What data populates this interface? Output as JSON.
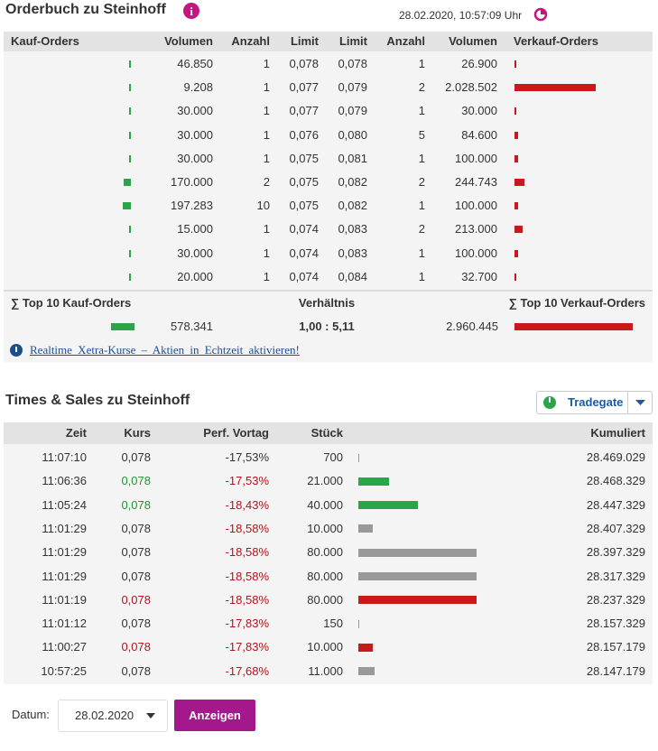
{
  "orderbook": {
    "title": "Orderbuch zu Steinhoff",
    "timestamp": "28.02.2020, 10:57:09 Uhr",
    "headers": [
      "Kauf-Orders",
      "Volumen",
      "Anzahl",
      "Limit",
      "Limit",
      "Anzahl",
      "Volumen",
      "Verkauf-Orders"
    ],
    "buy_color": "#2ca44a",
    "sell_color": "#c8191f",
    "rows": [
      [
        "46.850",
        "1",
        "0,078",
        "0,078",
        "1",
        "26.900"
      ],
      [
        "9.208",
        "1",
        "0,077",
        "0,079",
        "2",
        "2.028.502"
      ],
      [
        "30.000",
        "1",
        "0,077",
        "0,079",
        "1",
        "30.000"
      ],
      [
        "30.000",
        "1",
        "0,076",
        "0,080",
        "5",
        "84.600"
      ],
      [
        "30.000",
        "1",
        "0,075",
        "0,081",
        "1",
        "100.000"
      ],
      [
        "170.000",
        "2",
        "0,075",
        "0,082",
        "2",
        "244.743"
      ],
      [
        "197.283",
        "10",
        "0,075",
        "0,082",
        "1",
        "100.000"
      ],
      [
        "15.000",
        "1",
        "0,074",
        "0,083",
        "2",
        "213.000"
      ],
      [
        "30.000",
        "1",
        "0,074",
        "0,083",
        "1",
        "100.000"
      ],
      [
        "20.000",
        "1",
        "0,074",
        "0,084",
        "1",
        "32.700"
      ]
    ],
    "summary": {
      "buy_label": "∑ Top 10 Kauf-Orders",
      "ratio_label": "Verhältnis",
      "sell_label": "∑ Top 10 Verkauf-Orders",
      "buy_total": "578.341",
      "ratio": "1,00 : 5,11",
      "sell_total": "2.960.445"
    },
    "link": "Realtime Xetra-Kurse – Aktien in Echtzeit aktivieren!"
  },
  "times_sales": {
    "title": "Times & Sales zu Steinhoff",
    "exchange": "Tradegate",
    "headers": [
      "Zeit",
      "Kurs",
      "Perf. Vortag",
      "Stück",
      "Kumuliert"
    ],
    "rows": [
      {
        "cells": [
          "11:07:10",
          "0,078",
          "-17,53%",
          "700",
          "28.469.029"
        ],
        "kurs_color": "#333333",
        "perf_color": "#333333",
        "bar_color": "#999999"
      },
      {
        "cells": [
          "11:06:36",
          "0,078",
          "-17,53%",
          "21.000",
          "28.468.329"
        ],
        "kurs_color": "#1a9a2e",
        "perf_color": "#b3141c",
        "bar_color": "#2ca44a"
      },
      {
        "cells": [
          "11:05:24",
          "0,078",
          "-18,43%",
          "40.000",
          "28.447.329"
        ],
        "kurs_color": "#1a9a2e",
        "perf_color": "#b3141c",
        "bar_color": "#2ca44a"
      },
      {
        "cells": [
          "11:01:29",
          "0,078",
          "-18,58%",
          "10.000",
          "28.407.329"
        ],
        "kurs_color": "#333333",
        "perf_color": "#b3141c",
        "bar_color": "#999999"
      },
      {
        "cells": [
          "11:01:29",
          "0,078",
          "-18,58%",
          "80.000",
          "28.397.329"
        ],
        "kurs_color": "#333333",
        "perf_color": "#b3141c",
        "bar_color": "#999999"
      },
      {
        "cells": [
          "11:01:29",
          "0,078",
          "-18,58%",
          "80.000",
          "28.317.329"
        ],
        "kurs_color": "#333333",
        "perf_color": "#b3141c",
        "bar_color": "#999999"
      },
      {
        "cells": [
          "11:01:19",
          "0,078",
          "-18,58%",
          "80.000",
          "28.237.329"
        ],
        "kurs_color": "#b3141c",
        "perf_color": "#b3141c",
        "bar_color": "#c8191f"
      },
      {
        "cells": [
          "11:01:12",
          "0,078",
          "-17,83%",
          "150",
          "28.157.329"
        ],
        "kurs_color": "#333333",
        "perf_color": "#b3141c",
        "bar_color": "#999999"
      },
      {
        "cells": [
          "11:00:27",
          "0,078",
          "-17,83%",
          "10.000",
          "28.157.179"
        ],
        "kurs_color": "#b3141c",
        "perf_color": "#b3141c",
        "bar_color": "#c8191f"
      },
      {
        "cells": [
          "10:57:25",
          "0,078",
          "-17,68%",
          "11.000",
          "28.147.179"
        ],
        "kurs_color": "#333333",
        "perf_color": "#b3141c",
        "bar_color": "#999999"
      }
    ]
  },
  "form": {
    "label": "Datum:",
    "date": "28.02.2020",
    "button": "Anzeigen"
  }
}
